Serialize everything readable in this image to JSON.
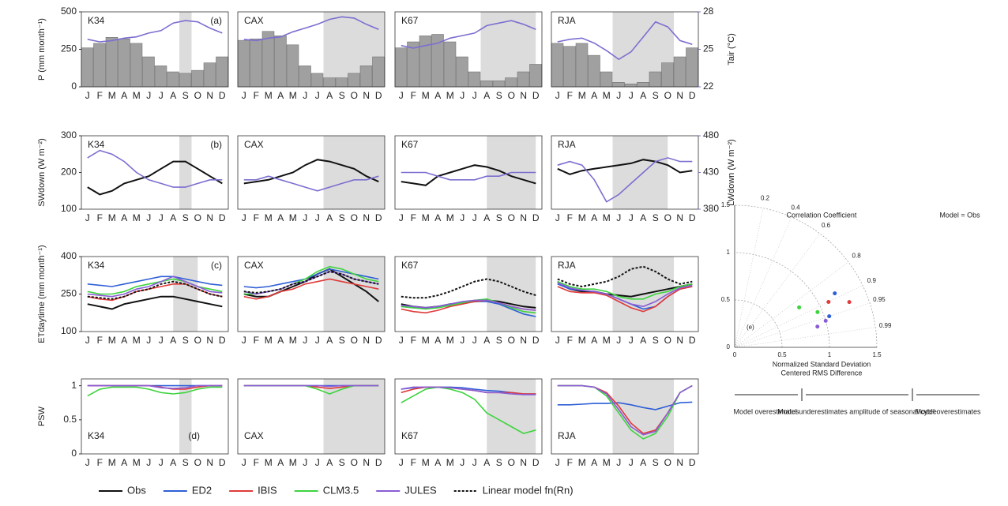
{
  "chart_data": [
    {
      "type": "bar_line",
      "label": "(a)",
      "ylabel": "P (mm month⁻¹)",
      "y2label": "Tair (°C)",
      "categories": [
        "J",
        "F",
        "M",
        "A",
        "M",
        "J",
        "J",
        "A",
        "S",
        "O",
        "N",
        "D"
      ],
      "panels": [
        "K34",
        "CAX",
        "K67",
        "RJA"
      ],
      "shade": [
        [
          7.5,
          8.5
        ],
        [
          6.5,
          11.5
        ],
        [
          6.5,
          11
        ],
        [
          4.5,
          9.5
        ]
      ],
      "ylim": [
        0,
        500
      ],
      "yticks": [
        0,
        250,
        500
      ],
      "y2lim": [
        22,
        28
      ],
      "y2ticks": [
        22,
        25,
        28
      ],
      "bar_color": "#a0a0a0",
      "bars": [
        [
          260,
          290,
          330,
          320,
          290,
          200,
          140,
          100,
          90,
          110,
          160,
          200
        ],
        [
          310,
          320,
          370,
          340,
          280,
          140,
          90,
          60,
          60,
          90,
          140,
          200
        ],
        [
          260,
          300,
          340,
          350,
          300,
          200,
          100,
          40,
          40,
          60,
          100,
          150
        ],
        [
          290,
          270,
          290,
          210,
          100,
          30,
          20,
          30,
          100,
          160,
          200,
          260
        ]
      ],
      "series": [
        {
          "color": "#7b6fd0",
          "axis": "y2",
          "values": [
            [
              25.8,
              25.6,
              25.7,
              25.9,
              26,
              26.3,
              26.5,
              27.1,
              27.3,
              27.2,
              26.7,
              26.3
            ],
            [
              25.8,
              25.7,
              25.9,
              26,
              26.4,
              26.7,
              27,
              27.4,
              27.6,
              27.5,
              27,
              26.6
            ],
            [
              25.3,
              25.1,
              25.3,
              25.5,
              25.9,
              26.1,
              26.3,
              26.9,
              27.1,
              27.3,
              27,
              26.6
            ],
            [
              25.6,
              25.8,
              25.9,
              25.5,
              24.9,
              24.2,
              24.8,
              26,
              27.2,
              26.8,
              25.7,
              25.4
            ]
          ]
        }
      ]
    },
    {
      "type": "line",
      "label": "(b)",
      "ylabel": "SWdown (W m⁻²)",
      "y2label": "LWdown (W m⁻²)",
      "categories": [
        "J",
        "F",
        "M",
        "A",
        "M",
        "J",
        "J",
        "A",
        "S",
        "O",
        "N",
        "D"
      ],
      "panels": [
        "K34",
        "CAX",
        "K67",
        "RJA"
      ],
      "shade": [
        [
          7.5,
          8.5
        ],
        [
          6.5,
          11.5
        ],
        [
          7,
          11
        ],
        [
          4.5,
          9
        ]
      ],
      "ylim": [
        100,
        300
      ],
      "yticks": [
        100,
        200,
        300
      ],
      "y2lim": [
        380,
        480
      ],
      "y2ticks": [
        380,
        430,
        480
      ],
      "series": [
        {
          "color": "#111111",
          "values": [
            [
              160,
              140,
              150,
              170,
              180,
              190,
              210,
              230,
              230,
              210,
              190,
              170
            ],
            [
              170,
              175,
              180,
              190,
              200,
              220,
              235,
              230,
              220,
              210,
              190,
              175
            ],
            [
              175,
              170,
              165,
              190,
              200,
              210,
              220,
              215,
              205,
              190,
              180,
              170
            ],
            [
              210,
              195,
              205,
              210,
              215,
              220,
              225,
              235,
              230,
              220,
              200,
              205
            ]
          ]
        },
        {
          "color": "#7b6fd0",
          "axis": "y2",
          "values": [
            [
              450,
              460,
              455,
              445,
              430,
              420,
              415,
              410,
              410,
              415,
              420,
              420
            ],
            [
              420,
              420,
              425,
              420,
              415,
              410,
              405,
              410,
              415,
              420,
              420,
              425
            ],
            [
              430,
              430,
              430,
              425,
              420,
              420,
              420,
              425,
              425,
              430,
              430,
              430
            ],
            [
              440,
              445,
              440,
              420,
              390,
              400,
              415,
              430,
              445,
              450,
              445,
              445
            ]
          ]
        }
      ]
    },
    {
      "type": "line",
      "label": "(c)",
      "ylabel": "ETdaytime (mm month⁻¹)",
      "categories": [
        "J",
        "F",
        "M",
        "A",
        "M",
        "J",
        "J",
        "A",
        "S",
        "O",
        "N",
        "D"
      ],
      "panels": [
        "K34",
        "CAX",
        "K67",
        "RJA"
      ],
      "shade": [
        [
          7,
          9
        ],
        [
          6.5,
          11.5
        ],
        [
          7,
          11
        ],
        [
          4.5,
          9.5
        ]
      ],
      "ylim": [
        100,
        400
      ],
      "yticks": [
        100,
        250,
        400
      ],
      "series": [
        {
          "name": "Obs",
          "color": "#111111",
          "values": [
            [
              210,
              200,
              190,
              210,
              220,
              230,
              240,
              240,
              230,
              220,
              210,
              200
            ],
            [
              250,
              240,
              240,
              260,
              280,
              300,
              330,
              350,
              320,
              290,
              260,
              220
            ],
            [
              210,
              200,
              195,
              200,
              210,
              215,
              220,
              225,
              220,
              210,
              200,
              195
            ],
            [
              300,
              270,
              260,
              260,
              250,
              245,
              240,
              250,
              260,
              270,
              280,
              290
            ]
          ]
        },
        {
          "name": "ED2",
          "color": "#2f5fd6",
          "values": [
            [
              290,
              285,
              280,
              290,
              300,
              310,
              320,
              320,
              310,
              300,
              290,
              285
            ],
            [
              280,
              275,
              280,
              290,
              300,
              310,
              330,
              350,
              340,
              330,
              320,
              310
            ],
            [
              200,
              195,
              195,
              200,
              210,
              215,
              220,
              220,
              210,
              190,
              170,
              160
            ],
            [
              290,
              270,
              265,
              260,
              250,
              230,
              210,
              190,
              200,
              240,
              270,
              280
            ]
          ]
        },
        {
          "name": "IBIS",
          "color": "#e03a3a",
          "values": [
            [
              240,
              230,
              225,
              240,
              260,
              270,
              280,
              290,
              290,
              270,
              250,
              240
            ],
            [
              240,
              230,
              240,
              260,
              270,
              290,
              300,
              310,
              300,
              290,
              280,
              270
            ],
            [
              190,
              180,
              175,
              185,
              200,
              210,
              220,
              225,
              215,
              200,
              190,
              185
            ],
            [
              280,
              260,
              255,
              255,
              245,
              220,
              195,
              180,
              200,
              240,
              270,
              280
            ]
          ]
        },
        {
          "name": "CLM3.5",
          "color": "#3ed43e",
          "values": [
            [
              260,
              250,
              250,
              260,
              280,
              290,
              300,
              310,
              300,
              280,
              270,
              260
            ],
            [
              250,
              250,
              260,
              270,
              290,
              310,
              340,
              360,
              350,
              330,
              310,
              300
            ],
            [
              200,
              195,
              190,
              195,
              205,
              215,
              225,
              230,
              215,
              195,
              180,
              175
            ],
            [
              300,
              280,
              270,
              270,
              260,
              240,
              230,
              230,
              250,
              260,
              280,
              290
            ]
          ]
        },
        {
          "name": "JULES",
          "color": "#8a5cd6",
          "values": [
            [
              250,
              245,
              240,
              250,
              270,
              280,
              300,
              320,
              300,
              280,
              260,
              255
            ],
            [
              260,
              250,
              260,
              270,
              290,
              300,
              320,
              340,
              330,
              310,
              300,
              290
            ],
            [
              205,
              200,
              195,
              200,
              210,
              220,
              225,
              225,
              215,
              200,
              190,
              185
            ],
            [
              295,
              275,
              265,
              260,
              250,
              230,
              210,
              200,
              220,
              250,
              275,
              285
            ]
          ]
        },
        {
          "name": "Linear model fn(Rn)",
          "color": "#111111",
          "dash": true,
          "values": [
            [
              240,
              235,
              230,
              240,
              260,
              270,
              290,
              300,
              290,
              270,
              250,
              240
            ],
            [
              260,
              255,
              260,
              270,
              290,
              300,
              320,
              340,
              330,
              310,
              300,
              290
            ],
            [
              240,
              235,
              235,
              245,
              260,
              280,
              300,
              310,
              300,
              280,
              260,
              245
            ],
            [
              310,
              290,
              280,
              290,
              300,
              320,
              350,
              360,
              340,
              310,
              290,
              300
            ]
          ]
        }
      ]
    },
    {
      "type": "line",
      "label": "(d)",
      "ylabel": "PSW",
      "categories": [
        "J",
        "F",
        "M",
        "A",
        "M",
        "J",
        "J",
        "A",
        "S",
        "O",
        "N",
        "D"
      ],
      "panels": [
        "K34",
        "CAX",
        "K67",
        "RJA"
      ],
      "shade": [
        [
          7.5,
          8.5
        ],
        [
          6.5,
          11.5
        ],
        [
          7,
          11
        ],
        [
          4.5,
          9.5
        ]
      ],
      "ylim": [
        0,
        1.1
      ],
      "yticks": [
        0,
        0.5,
        1
      ],
      "series": [
        {
          "color": "#2f5fd6",
          "values": [
            [
              1,
              1,
              1,
              1,
              1,
              1,
              1,
              1,
              1,
              1,
              1,
              1
            ],
            [
              1,
              1,
              1,
              1,
              1,
              1,
              1,
              1,
              1,
              1,
              1,
              1
            ],
            [
              0.95,
              0.97,
              0.98,
              0.98,
              0.98,
              0.97,
              0.95,
              0.93,
              0.92,
              0.9,
              0.88,
              0.88
            ],
            [
              0.72,
              0.72,
              0.73,
              0.74,
              0.74,
              0.75,
              0.72,
              0.68,
              0.65,
              0.7,
              0.75,
              0.76
            ]
          ]
        },
        {
          "color": "#e03a3a",
          "values": [
            [
              1,
              1,
              1,
              1,
              1,
              1,
              0.98,
              0.95,
              0.95,
              0.98,
              1,
              1
            ],
            [
              1,
              1,
              1,
              1,
              1,
              1,
              0.98,
              0.96,
              0.98,
              1,
              1,
              1
            ],
            [
              0.9,
              0.95,
              0.98,
              0.98,
              0.97,
              0.95,
              0.93,
              0.9,
              0.9,
              0.9,
              0.88,
              0.88
            ],
            [
              1,
              1,
              1,
              0.98,
              0.9,
              0.7,
              0.45,
              0.3,
              0.35,
              0.6,
              0.9,
              1
            ]
          ]
        },
        {
          "color": "#3ed43e",
          "values": [
            [
              0.85,
              0.95,
              0.98,
              0.98,
              0.98,
              0.95,
              0.9,
              0.88,
              0.9,
              0.95,
              0.98,
              0.98
            ],
            [
              1,
              1,
              1,
              1,
              1,
              1,
              0.95,
              0.88,
              0.95,
              1,
              1,
              1
            ],
            [
              0.75,
              0.85,
              0.95,
              0.98,
              0.95,
              0.9,
              0.8,
              0.6,
              0.5,
              0.4,
              0.3,
              0.35
            ],
            [
              1,
              1,
              1,
              0.98,
              0.85,
              0.6,
              0.35,
              0.22,
              0.3,
              0.55,
              0.9,
              1
            ]
          ]
        },
        {
          "color": "#8a5cd6",
          "values": [
            [
              1,
              1,
              1,
              1,
              1,
              1,
              0.97,
              0.96,
              0.97,
              1,
              1,
              1
            ],
            [
              1,
              1,
              1,
              1,
              1,
              1,
              1,
              0.99,
              1,
              1,
              1,
              1
            ],
            [
              0.95,
              0.98,
              0.98,
              0.98,
              0.97,
              0.95,
              0.93,
              0.9,
              0.9,
              0.88,
              0.87,
              0.87
            ],
            [
              1,
              1,
              1,
              0.98,
              0.88,
              0.65,
              0.4,
              0.28,
              0.33,
              0.6,
              0.9,
              1
            ]
          ]
        }
      ]
    },
    {
      "type": "taylor",
      "label": "(e)",
      "title": "Correlation Coefficient",
      "xlabel": "Normalized Standard Deviation",
      "xlabel2": "Centered RMS Difference",
      "annotation": "Model = Obs",
      "ylim": [
        0,
        1.5
      ],
      "yticks": [
        0,
        0.5,
        1,
        1.5
      ],
      "corrticks": [
        0.2,
        0.4,
        0.6,
        0.8,
        0.9,
        0.95,
        0.99
      ],
      "std": [
        1.05,
        1.1,
        0.95,
        0.9,
        1.2,
        1.3,
        0.8,
        1.0
      ],
      "corr": [
        0.95,
        0.9,
        0.92,
        0.97,
        0.88,
        0.93,
        0.85,
        0.96
      ],
      "notes": [
        "Model overestimates",
        "Model underestimates amplitude of seasonal cycle",
        "Model overestimates"
      ]
    }
  ]
}
